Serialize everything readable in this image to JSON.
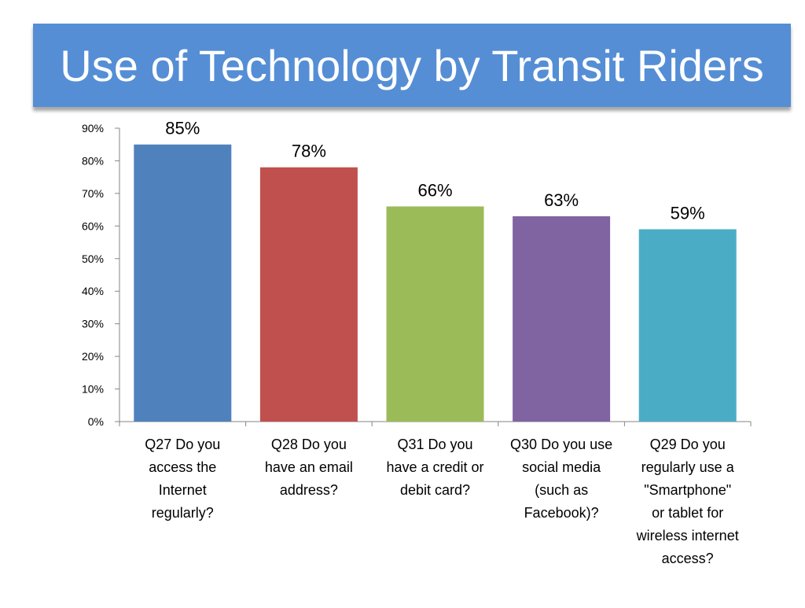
{
  "slide": {
    "title": "Use of Technology by Transit Riders"
  },
  "chart_data": {
    "type": "bar",
    "title": "",
    "xlabel": "",
    "ylabel": "",
    "ylim": [
      0,
      90
    ],
    "yticks": [
      "0%",
      "10%",
      "20%",
      "30%",
      "40%",
      "50%",
      "60%",
      "70%",
      "80%",
      "90%"
    ],
    "categories": [
      "Q27 Do you access the Internet regularly?",
      "Q28 Do you have an email address?",
      "Q31 Do you have a credit or debit card?",
      "Q30 Do you use social media (such as Facebook)?",
      "Q29 Do you regularly use a \"Smartphone\" or tablet for wireless internet access?"
    ],
    "category_lines": [
      [
        "Q27 Do you",
        "access the",
        "Internet",
        "regularly?"
      ],
      [
        "Q28 Do you",
        "have an email",
        "address?"
      ],
      [
        "Q31 Do you",
        "have a credit or",
        "debit card?"
      ],
      [
        "Q30 Do you use",
        "social media",
        "(such as",
        "Facebook)?"
      ],
      [
        "Q29 Do you",
        "regularly use a",
        "\"Smartphone\"",
        "or tablet for",
        "wireless internet",
        "access?"
      ]
    ],
    "values": [
      85,
      78,
      66,
      63,
      59
    ],
    "data_labels": [
      "85%",
      "78%",
      "66%",
      "63%",
      "59%"
    ],
    "colors": [
      "#4f81bd",
      "#c0504d",
      "#9bbb59",
      "#8064a2",
      "#4bacc6"
    ],
    "grid": false,
    "legend": "none"
  }
}
